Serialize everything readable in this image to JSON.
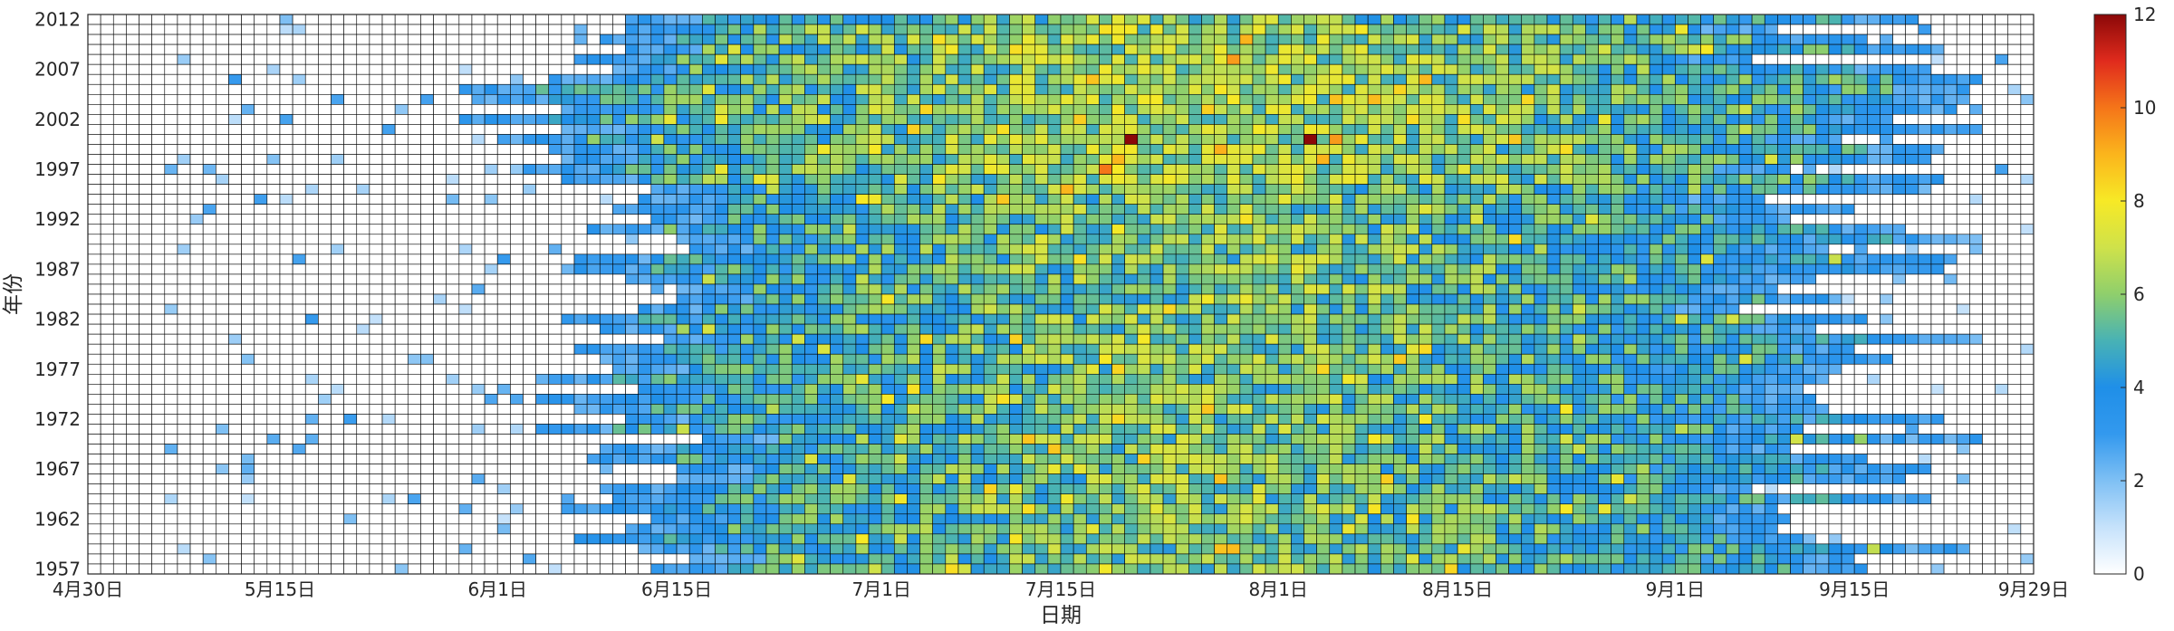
{
  "chart_data": {
    "type": "heatmap",
    "title": "",
    "xlabel": "日期",
    "ylabel": "年份",
    "x_tick_labels": [
      "4月30日",
      "5月15日",
      "6月1日",
      "6月15日",
      "7月1日",
      "7月15日",
      "8月1日",
      "8月15日",
      "9月1日",
      "9月15日",
      "9月29日"
    ],
    "x_tick_day_index": [
      0,
      15,
      32,
      46,
      62,
      76,
      93,
      107,
      124,
      138,
      152
    ],
    "y_tick_labels": [
      "2012",
      "2007",
      "2002",
      "1997",
      "1992",
      "1987",
      "1982",
      "1977",
      "1972",
      "1967",
      "1962",
      "1957"
    ],
    "y_tick_values": [
      2012,
      2007,
      2002,
      1997,
      1992,
      1987,
      1982,
      1977,
      1972,
      1967,
      1962,
      1957
    ],
    "x_range_days": [
      0,
      152
    ],
    "y_range_years": [
      1957,
      2012
    ],
    "colorbar": {
      "min": 0,
      "max": 12,
      "ticks": [
        "0",
        "2",
        "4",
        "6",
        "8",
        "10",
        "12"
      ],
      "colormap": [
        "#ffffff",
        "#c6e2fb",
        "#7fc0f4",
        "#3399ee",
        "#1f8fe8",
        "#48b2b5",
        "#8fcf6c",
        "#cfe24a",
        "#f7e926",
        "#fbb51c",
        "#f57519",
        "#e02b1d",
        "#8b0808"
      ]
    },
    "grid": true,
    "cell_edge_color": "#000000",
    "notes_visible_peaks": [
      {
        "year": 2000,
        "day": 81,
        "value": 12
      },
      {
        "year": 2000,
        "day": 95,
        "value": 12
      },
      {
        "year": 1997,
        "day": 79,
        "value": 10
      },
      {
        "year": 1995,
        "day": 76,
        "value": 9
      }
    ]
  }
}
